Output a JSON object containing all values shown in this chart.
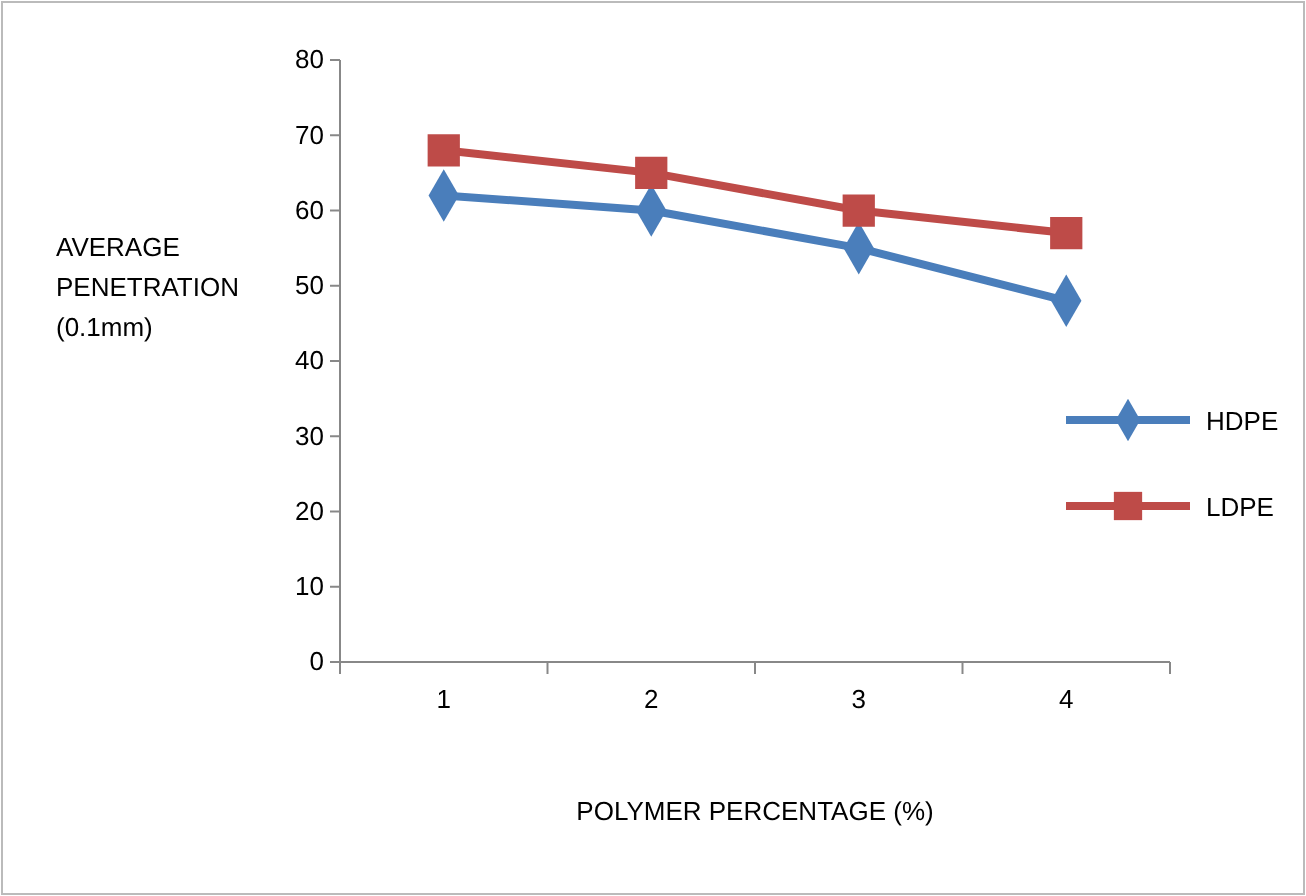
{
  "chart_data": {
    "type": "line",
    "xlabel": "POLYMER PERCENTAGE (%)",
    "ylabel": "AVERAGE PENETRATION (0.1mm)",
    "categories": [
      "1",
      "2",
      "3",
      "4"
    ],
    "series": [
      {
        "name": "HDPE",
        "color": "#4a7ebb",
        "marker": "diamond",
        "values": [
          62,
          60,
          55,
          48
        ]
      },
      {
        "name": "LDPE",
        "color": "#be4b48",
        "marker": "square",
        "values": [
          68,
          65,
          60,
          57
        ]
      }
    ],
    "ylim": [
      0,
      80
    ],
    "yticks": [
      0,
      10,
      20,
      30,
      40,
      50,
      60,
      70,
      80
    ],
    "grid": false,
    "legend": "right"
  }
}
